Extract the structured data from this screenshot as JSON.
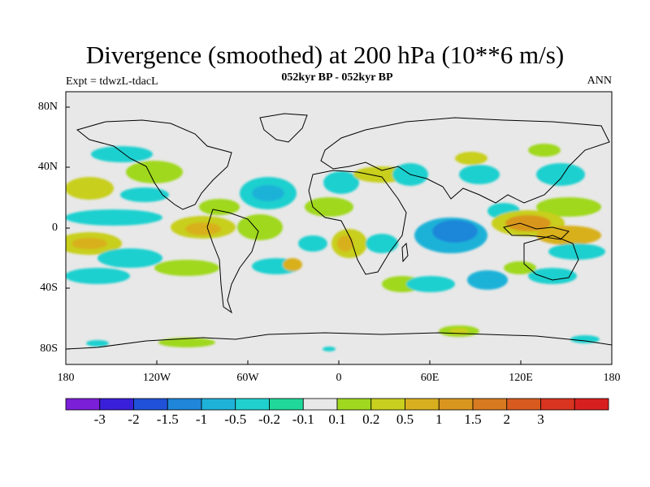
{
  "title": "Divergence (smoothed) at 200 hPa (10**6 m/s)",
  "subtitle_left": "Expt = tdwzL-tdacL",
  "subtitle_center": "052kyr BP - 052kyr BP",
  "subtitle_right": "ANN",
  "map": {
    "background_color": "#e8e8e8",
    "lat_ticks": [
      "80N",
      "40N",
      "0",
      "40S",
      "80S"
    ],
    "lon_ticks": [
      "180",
      "120W",
      "60W",
      "0",
      "60E",
      "120E",
      "180"
    ]
  },
  "colorbar": {
    "colors": [
      "#7b1fd8",
      "#3a1fd8",
      "#1f52d8",
      "#1f86d8",
      "#1fb2d8",
      "#1fd0cf",
      "#1fd89a",
      "#e8e8e8",
      "#9fd81f",
      "#c8cf1f",
      "#d8b01f",
      "#d8961f",
      "#d87a1f",
      "#d85a1f",
      "#d8341f",
      "#d81f1f"
    ],
    "labels": [
      "-3",
      "-2",
      "-1.5",
      "-1",
      "-0.5",
      "-0.2",
      "-0.1",
      "0.1",
      "0.2",
      "0.5",
      "1",
      "1.5",
      "2",
      "3"
    ]
  }
}
